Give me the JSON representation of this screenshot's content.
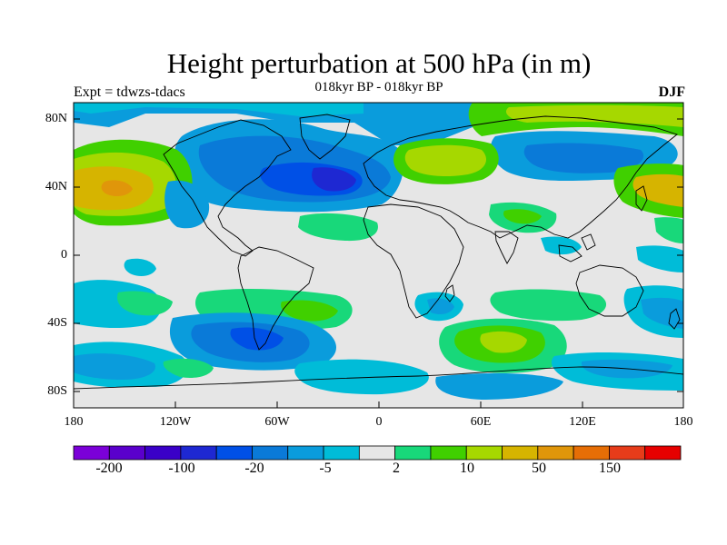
{
  "title": "Height perturbation at 500 hPa (in m)",
  "subtitle": "018kyr BP - 018kyr BP",
  "experiment": "Expt = tdwzs-tdacs",
  "season": "DJF",
  "map": {
    "lat_labels": [
      "80N",
      "40N",
      "0",
      "40S",
      "80S"
    ],
    "lon_labels": [
      "180",
      "120W",
      "60W",
      "0",
      "60E",
      "120E",
      "180"
    ],
    "background_color": "#e6e6e6"
  },
  "colorbar": {
    "colors": [
      "#7b00d8",
      "#5a00cc",
      "#3a00c8",
      "#1e28d2",
      "#0050e6",
      "#0a7ad8",
      "#0a9cdc",
      "#00bcd8",
      "#e6e6e6",
      "#18d87a",
      "#40d000",
      "#a6d800",
      "#d6b400",
      "#e0960a",
      "#e66e06",
      "#e63c1a",
      "#e60000"
    ],
    "labels": [
      "-200",
      "-100",
      "-20",
      "-5",
      "2",
      "10",
      "50",
      "150"
    ]
  }
}
